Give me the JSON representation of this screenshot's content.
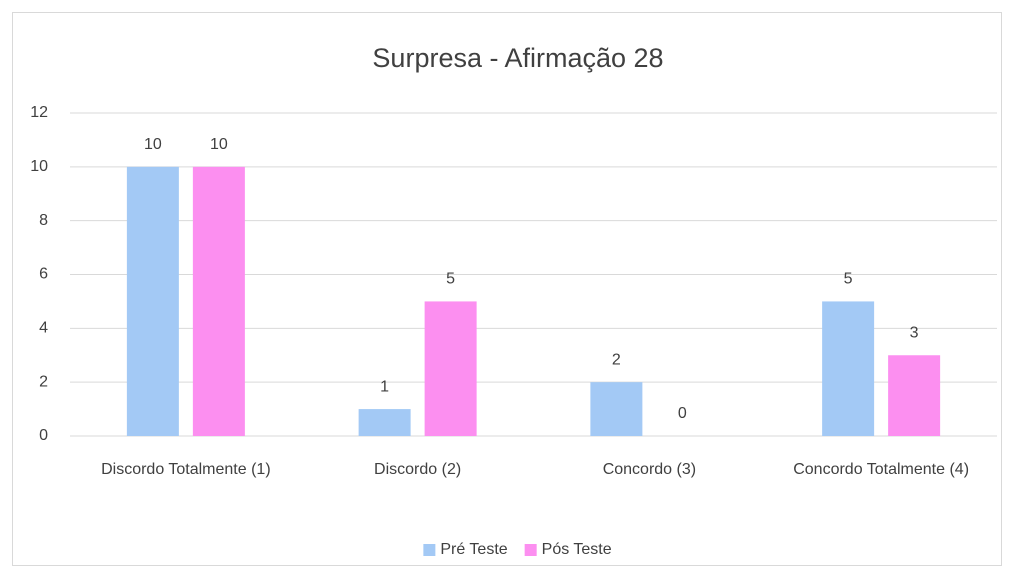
{
  "chart_data": {
    "type": "bar",
    "title": "Surpresa - Afirmação 28",
    "categories": [
      "Discordo Totalmente (1)",
      "Discordo (2)",
      "Concordo (3)",
      "Concordo Totalmente (4)"
    ],
    "series": [
      {
        "name": "Pré Teste",
        "color": "#a3c9f5",
        "values": [
          10,
          1,
          2,
          5
        ]
      },
      {
        "name": "Pós Teste",
        "color": "#fc8ff0",
        "values": [
          10,
          5,
          0,
          3
        ]
      }
    ],
    "ylim": [
      0,
      12
    ],
    "yticks": [
      0,
      2,
      4,
      6,
      8,
      10,
      12
    ],
    "grid": true,
    "legend": "bottom"
  }
}
